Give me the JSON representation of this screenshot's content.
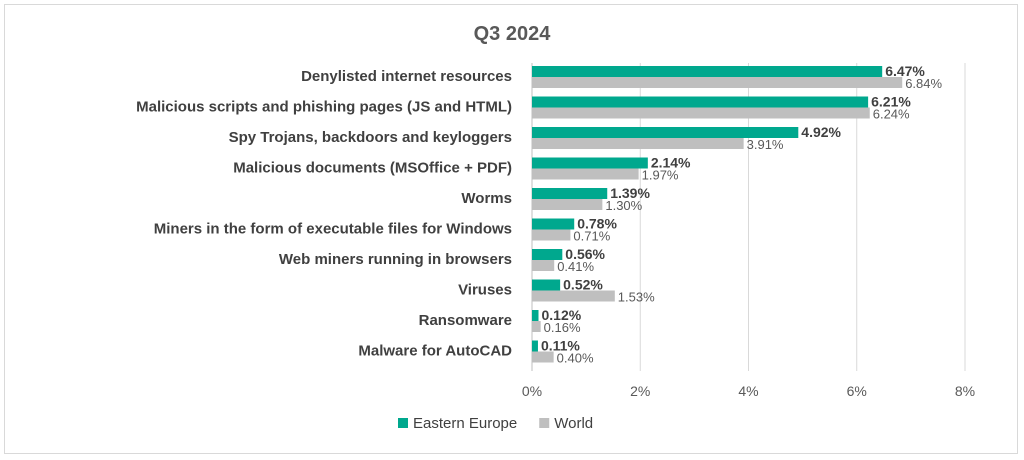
{
  "chart_data": {
    "type": "bar",
    "orientation": "horizontal",
    "title": "Q3 2024",
    "categories": [
      "Denylisted internet resources",
      "Malicious scripts and phishing pages (JS and HTML)",
      "Spy Trojans, backdoors and keyloggers",
      "Malicious documents (MSOffice + PDF)",
      "Worms",
      "Miners in the form of executable files for Windows",
      "Web miners running in browsers",
      "Viruses",
      "Ransomware",
      "Malware for AutoCAD"
    ],
    "series": [
      {
        "name": "Eastern Europe",
        "color": "#00a88e",
        "values": [
          6.47,
          6.21,
          4.92,
          2.14,
          1.39,
          0.78,
          0.56,
          0.52,
          0.12,
          0.11
        ],
        "labels": [
          "6.47%",
          "6.21%",
          "4.92%",
          "2.14%",
          "1.39%",
          "0.78%",
          "0.56%",
          "0.52%",
          "0.12%",
          "0.11%"
        ]
      },
      {
        "name": "World",
        "color": "#bfbfbf",
        "values": [
          6.84,
          6.24,
          3.91,
          1.97,
          1.3,
          0.71,
          0.41,
          1.53,
          0.16,
          0.4
        ],
        "labels": [
          "6.84%",
          "6.24%",
          "3.91%",
          "1.97%",
          "1.30%",
          "0.71%",
          "0.41%",
          "1.53%",
          "0.16%",
          "0.40%"
        ]
      }
    ],
    "xlim": [
      0,
      8
    ],
    "x_ticks": [
      0,
      2,
      4,
      6,
      8
    ],
    "x_tick_labels": [
      "0%",
      "2%",
      "4%",
      "6%",
      "8%"
    ],
    "grid": "vertical",
    "legend": "bottom-center"
  }
}
